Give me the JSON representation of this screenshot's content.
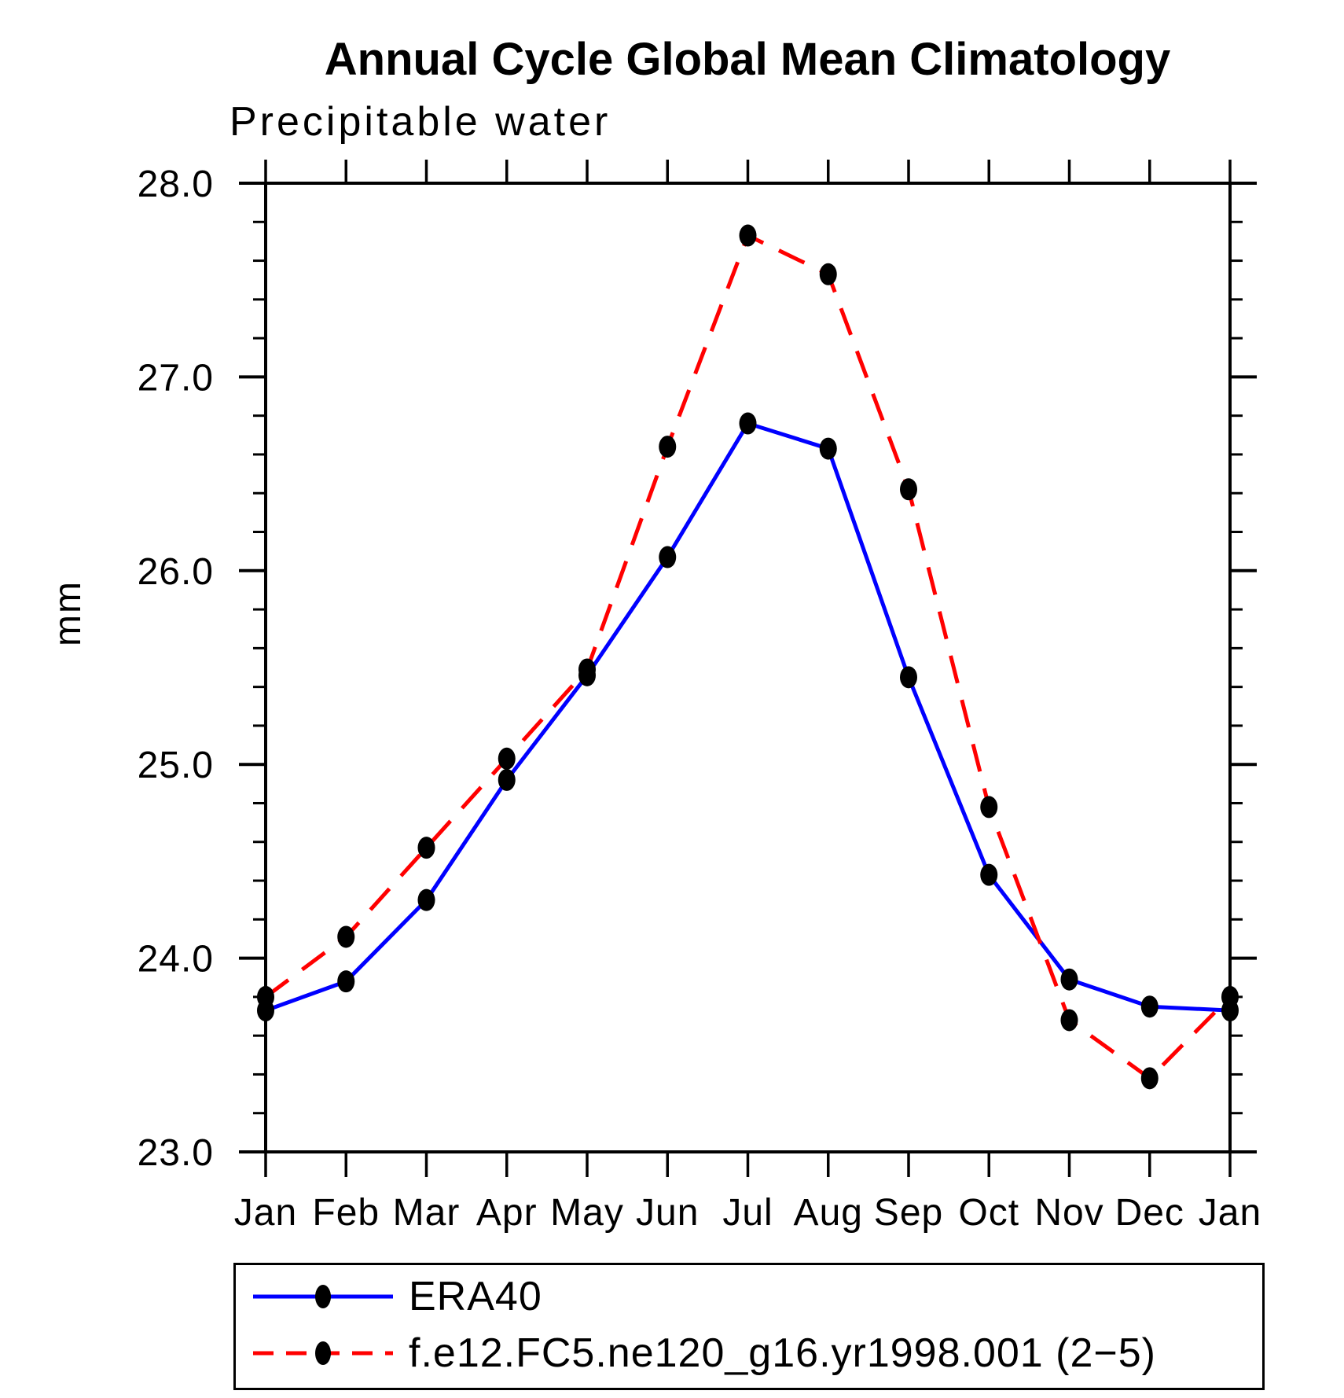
{
  "header": {
    "title": "Annual Cycle Global Mean Climatology",
    "subtitle": "Precipitable water"
  },
  "chart_data": {
    "type": "line",
    "title": "Annual Cycle Global Mean Climatology",
    "subtitle": "Precipitable water",
    "ylabel": "mm",
    "xlabel": "",
    "categories": [
      "Jan",
      "Feb",
      "Mar",
      "Apr",
      "May",
      "Jun",
      "Jul",
      "Aug",
      "Sep",
      "Oct",
      "Nov",
      "Dec",
      "Jan"
    ],
    "series": [
      {
        "id": "era40",
        "name": "ERA40",
        "color": "#0000ff",
        "line_style": "solid",
        "values": [
          23.73,
          23.88,
          24.3,
          24.92,
          25.46,
          26.07,
          26.76,
          26.63,
          25.45,
          24.43,
          23.89,
          23.75,
          23.73
        ]
      },
      {
        "id": "model-run",
        "name": "f.e12.FC5.ne120_g16.yr1998.001 (2−5)",
        "color": "#ff0000",
        "line_style": "dashed",
        "values": [
          23.8,
          24.11,
          24.57,
          25.03,
          25.49,
          26.64,
          27.73,
          27.53,
          26.42,
          24.78,
          23.68,
          23.38,
          23.8
        ]
      }
    ],
    "ylim": [
      23.0,
      28.0
    ],
    "ytick_major": [
      28.0,
      27.0,
      26.0,
      25.0,
      24.0,
      23.0
    ],
    "ytick_labels": [
      "28.0",
      "27.0",
      "26.0",
      "25.0",
      "24.0",
      "23.0"
    ],
    "ytick_minor_step": 0.2,
    "marker": "filled-circle",
    "marker_color": "#000000",
    "grid": "off",
    "legend_position": "bottom-left-box"
  }
}
